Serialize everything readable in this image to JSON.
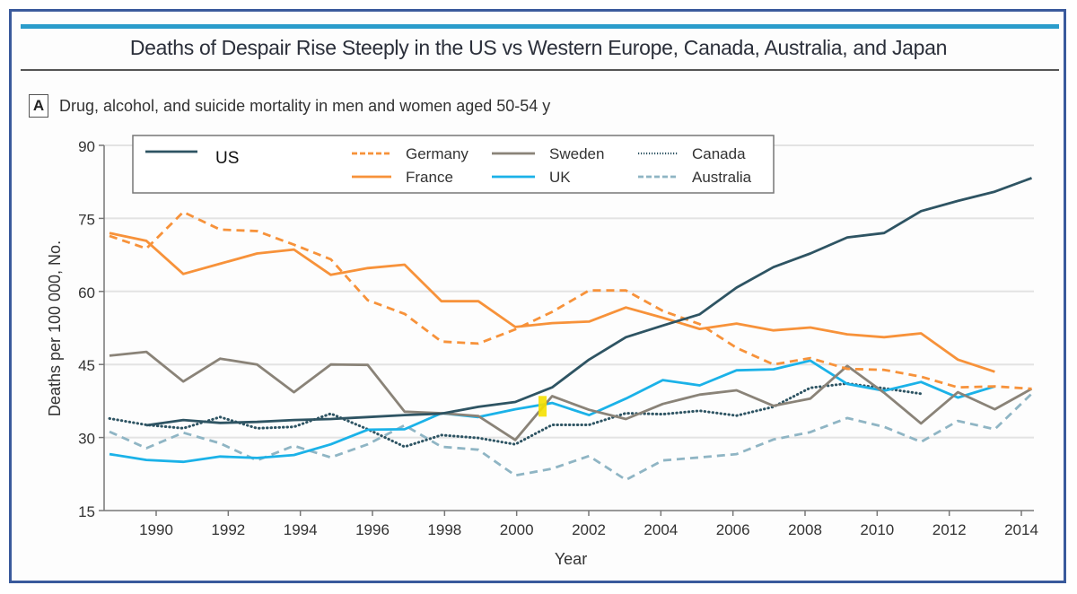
{
  "header": {
    "title": "Deaths of Despair Rise Steeply in the US vs Western Europe, Canada, Australia, and Japan",
    "panel_label": "A",
    "subtitle": "Drug, alcohol, and suicide mortality in men and women aged 50-54 y"
  },
  "colors": {
    "frame": "#3a5a9c",
    "accent_bar": "#2a9ccb",
    "highlight": "#f5e000"
  },
  "chart_data": {
    "type": "line",
    "title": "Deaths of Despair Rise Steeply in the US vs Western Europe, Canada, Australia, and Japan",
    "subtitle": "Drug, alcohol, and suicide mortality in men and women aged 50-54 y",
    "xlabel": "Year",
    "ylabel": "Deaths per 100 000, No.",
    "ylim": [
      15,
      90
    ],
    "xlim": [
      1988.5,
      2014.5
    ],
    "yticks": [
      15,
      30,
      45,
      60,
      75,
      90
    ],
    "xticks": [
      1990,
      1992,
      1994,
      1996,
      1998,
      2000,
      2002,
      2004,
      2006,
      2008,
      2010,
      2012,
      2014
    ],
    "grid": "horizontal",
    "legend_position": "top",
    "x": [
      1989,
      1990,
      1991,
      1992,
      1993,
      1994,
      1995,
      1996,
      1997,
      1998,
      1999,
      2000,
      2001,
      2002,
      2003,
      2004,
      2005,
      2006,
      2007,
      2008,
      2009,
      2010,
      2011,
      2012,
      2013,
      2014
    ],
    "series": [
      {
        "name": "US",
        "color": "#2e5463",
        "style": "solid",
        "values": [
          null,
          32.5,
          33.6,
          33.0,
          33.2,
          33.6,
          33.8,
          34.2,
          34.6,
          34.9,
          36.3,
          37.3,
          40.3,
          46.0,
          50.6,
          53.0,
          55.3,
          60.8,
          65.0,
          67.8,
          71.1,
          72.0,
          76.5,
          78.6,
          80.5,
          83.3
        ]
      },
      {
        "name": "Germany",
        "color": "#f7923a",
        "style": "dashed",
        "values": [
          71.4,
          68.8,
          76.3,
          72.7,
          72.4,
          69.6,
          66.6,
          58.2,
          55.4,
          49.7,
          49.3,
          52.2,
          55.8,
          60.2,
          60.2,
          56.0,
          53.3,
          48.4,
          45.0,
          46.3,
          44.1,
          43.9,
          42.5,
          40.3,
          40.5,
          40.0
        ]
      },
      {
        "name": "France",
        "color": "#f7923a",
        "style": "solid",
        "values": [
          72.0,
          70.4,
          63.6,
          65.7,
          67.8,
          68.6,
          63.4,
          64.8,
          65.5,
          58.0,
          58.0,
          52.7,
          53.5,
          53.8,
          56.7,
          54.6,
          52.3,
          53.4,
          52.0,
          52.6,
          51.2,
          50.6,
          51.4,
          46.0,
          43.5,
          null
        ]
      },
      {
        "name": "Sweden",
        "color": "#8a8378",
        "style": "solid",
        "values": [
          46.8,
          47.6,
          41.5,
          46.2,
          45.0,
          39.3,
          45.0,
          44.9,
          35.3,
          35.0,
          34.4,
          29.5,
          38.5,
          35.7,
          33.8,
          36.9,
          38.8,
          39.7,
          36.5,
          38.0,
          44.7,
          39.2,
          32.9,
          39.3,
          35.8,
          40.0
        ]
      },
      {
        "name": "UK",
        "color": "#1bb2e8",
        "style": "solid",
        "values": [
          26.6,
          25.4,
          25.0,
          26.1,
          25.8,
          26.4,
          28.6,
          31.6,
          31.7,
          35.0,
          34.2,
          35.8,
          37.1,
          34.6,
          38.0,
          41.8,
          40.7,
          43.8,
          44.0,
          45.8,
          41.0,
          39.6,
          41.4,
          38.2,
          40.5,
          null
        ]
      },
      {
        "name": "Canada",
        "color": "#2e5463",
        "style": "dotted",
        "values": [
          33.9,
          32.6,
          31.9,
          34.2,
          31.9,
          32.2,
          34.9,
          31.7,
          28.1,
          30.5,
          29.9,
          28.6,
          32.6,
          32.6,
          35.0,
          34.8,
          35.5,
          34.5,
          36.3,
          40.2,
          41.1,
          40.1,
          39.0,
          null,
          null,
          null
        ]
      },
      {
        "name": "Australia",
        "color": "#8fb5c4",
        "style": "dashed",
        "values": [
          31.2,
          27.8,
          31.0,
          28.8,
          25.3,
          28.3,
          25.9,
          28.6,
          32.5,
          28.1,
          27.5,
          22.2,
          23.6,
          26.2,
          21.3,
          25.3,
          25.9,
          26.6,
          29.6,
          31.1,
          34.0,
          32.2,
          29.1,
          33.4,
          31.7,
          39.0
        ]
      }
    ],
    "legend": [
      {
        "name": "US",
        "series_index": 0
      },
      {
        "name": "Germany",
        "series_index": 1
      },
      {
        "name": "France",
        "series_index": 2
      },
      {
        "name": "Sweden",
        "series_index": 3
      },
      {
        "name": "UK",
        "series_index": 4
      },
      {
        "name": "Canada",
        "series_index": 5
      },
      {
        "name": "Australia",
        "series_index": 6
      }
    ],
    "annotations": [
      {
        "type": "highlight-marker",
        "x": 2000.8,
        "y": 36.5,
        "color": "#f5e000"
      }
    ]
  }
}
